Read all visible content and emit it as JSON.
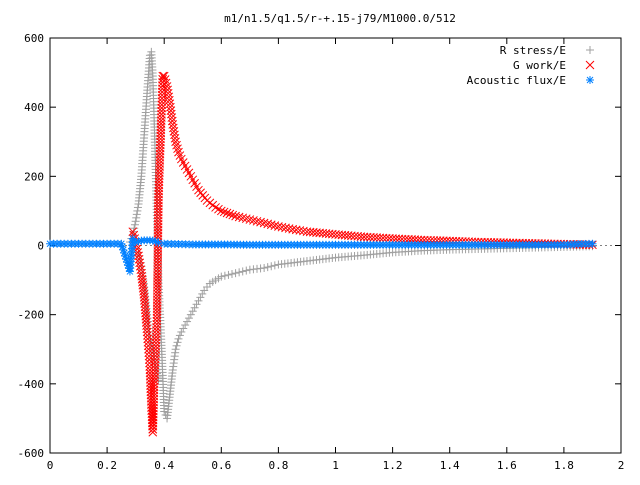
{
  "chart_data": {
    "type": "scatter",
    "title": "m1/n1.5/q1.5/r-+.15-j79/M1000.0/512",
    "xlabel": "",
    "ylabel": "",
    "xlim": [
      0,
      2
    ],
    "ylim": [
      -600,
      600
    ],
    "x_ticks": [
      "0",
      "0.2",
      "0.4",
      "0.6",
      "0.8",
      "1",
      "1.2",
      "1.4",
      "1.6",
      "1.8",
      "2"
    ],
    "y_ticks": [
      "600",
      "400",
      "200",
      "0",
      "-200",
      "-400",
      "-600"
    ],
    "grid": false,
    "legend_position": "top-right",
    "series": [
      {
        "name": "R stress/E",
        "marker": "plus",
        "color": "#a0a0a0",
        "x": [
          0.28,
          0.29,
          0.3,
          0.31,
          0.32,
          0.33,
          0.34,
          0.35,
          0.355,
          0.36,
          0.365,
          0.37,
          0.38,
          0.39,
          0.4,
          0.41,
          0.42,
          0.43,
          0.44,
          0.45,
          0.46,
          0.48,
          0.5,
          0.52,
          0.54,
          0.56,
          0.58,
          0.6,
          0.65,
          0.7,
          0.75,
          0.8,
          0.9,
          1.0,
          1.1,
          1.2,
          1.3,
          1.4,
          1.5,
          1.6,
          1.7,
          1.8,
          1.9,
          0.31,
          0.32,
          0.33,
          0.34,
          0.35,
          0.36,
          0.37,
          0.38
        ],
        "y": [
          10,
          30,
          70,
          120,
          200,
          320,
          440,
          550,
          560,
          490,
          360,
          220,
          -100,
          -280,
          -480,
          -500,
          -430,
          -360,
          -300,
          -270,
          -250,
          -220,
          -190,
          -160,
          -130,
          -110,
          -100,
          -90,
          -80,
          -70,
          -65,
          -55,
          -45,
          -35,
          -28,
          -20,
          -15,
          -12,
          -10,
          -8,
          -6,
          -4,
          -2,
          -20,
          -60,
          -120,
          -200,
          -260,
          -300,
          -350,
          -390
        ]
      },
      {
        "name": "G work/E",
        "marker": "cross",
        "color": "#ff0000",
        "x": [
          0.29,
          0.3,
          0.31,
          0.32,
          0.33,
          0.34,
          0.345,
          0.35,
          0.355,
          0.36,
          0.365,
          0.37,
          0.375,
          0.38,
          0.39,
          0.395,
          0.4,
          0.41,
          0.42,
          0.43,
          0.44,
          0.45,
          0.46,
          0.48,
          0.5,
          0.52,
          0.55,
          0.58,
          0.6,
          0.65,
          0.7,
          0.75,
          0.8,
          0.85,
          0.9,
          1.0,
          1.1,
          1.2,
          1.3,
          1.4,
          1.5,
          1.6,
          1.7,
          1.8,
          1.9
        ],
        "y": [
          40,
          10,
          -30,
          -80,
          -150,
          -250,
          -300,
          -360,
          -460,
          -540,
          -400,
          -310,
          -200,
          140,
          370,
          490,
          490,
          460,
          410,
          350,
          300,
          270,
          250,
          220,
          190,
          160,
          130,
          110,
          100,
          85,
          75,
          65,
          55,
          47,
          40,
          32,
          25,
          20,
          16,
          13,
          10,
          8,
          6,
          4,
          2
        ]
      },
      {
        "name": "Acoustic flux/E",
        "marker": "star",
        "color": "#0080ff",
        "x": [
          0.0,
          0.05,
          0.1,
          0.15,
          0.2,
          0.25,
          0.28,
          0.29,
          0.3,
          0.31,
          0.32,
          0.33,
          0.34,
          0.35,
          0.36,
          0.37,
          0.38,
          0.4,
          0.45,
          0.5,
          0.6,
          0.7,
          0.8,
          0.9,
          1.0,
          1.1,
          1.2,
          1.3,
          1.4,
          1.5,
          1.6,
          1.7,
          1.8,
          1.85,
          1.9
        ],
        "y": [
          5,
          5,
          5,
          5,
          5,
          5,
          -75,
          20,
          10,
          12,
          14,
          15,
          15,
          15,
          14,
          12,
          8,
          5,
          4,
          3,
          3,
          2,
          2,
          2,
          2,
          2,
          2,
          2,
          2,
          2,
          2,
          2,
          2,
          4,
          5
        ]
      }
    ]
  }
}
